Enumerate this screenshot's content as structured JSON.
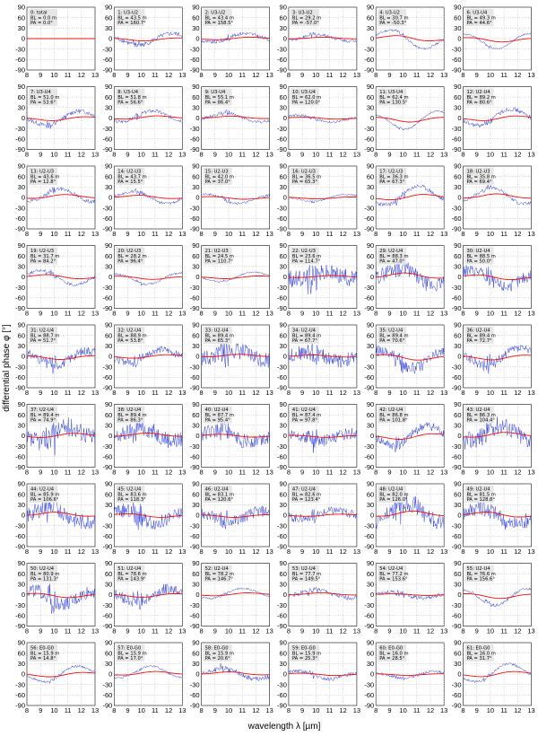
{
  "chart_data": {
    "type": "line",
    "xlabel": "wavelength λ [µm]",
    "ylabel": "differential phase φ [°]",
    "xlim": [
      8,
      13
    ],
    "ylim": [
      -90,
      90
    ],
    "x_ticks": [
      8,
      9,
      10,
      11,
      12,
      13
    ],
    "y_ticks": [
      90,
      60,
      30,
      0,
      -30,
      -60,
      -90
    ],
    "grid": "dotted",
    "series_colors": {
      "data": "#3344dd",
      "model": "#ee1111"
    },
    "panels": [
      {
        "label": "0: total",
        "bl": "BL = 0.0 m",
        "pa": "PA = 0.0°"
      },
      {
        "label": "1: U3-U2",
        "bl": "BL = 43.5 m",
        "pa": "PA = 160.7°"
      },
      {
        "label": "2: U3-U2",
        "bl": "BL = 43.4 m",
        "pa": "PA = 158.5°"
      },
      {
        "label": "3: U3-U2",
        "bl": "BL = 29.2 m",
        "pa": "PA = -57.0°"
      },
      {
        "label": "4: U3-U2",
        "bl": "BL = 30.7 m",
        "pa": "PA = -50.3°"
      },
      {
        "label": "6: U3-U4",
        "bl": "BL = 49.3 m",
        "pa": "PA = 44.6°"
      },
      {
        "label": "7: U3-U4",
        "bl": "BL = 51.0 m",
        "pa": "PA = 53.6°"
      },
      {
        "label": "8: U3-U4",
        "bl": "BL = 51.8 m",
        "pa": "PA = 56.6°"
      },
      {
        "label": "9: U3-U4",
        "bl": "BL = 55.1 m",
        "pa": "PA = 86.4°"
      },
      {
        "label": "10: U3-U4",
        "bl": "BL = 62.0 m",
        "pa": "PA = 120.0°"
      },
      {
        "label": "11: U3-U4",
        "bl": "BL = 62.4 m",
        "pa": "PA = 130.5°"
      },
      {
        "label": "12: U2-U4",
        "bl": "BL = 89.2 m",
        "pa": "PA = 80.6°"
      },
      {
        "label": "13: U2-U3",
        "bl": "BL = 43.6 m",
        "pa": "PA = 12.8°"
      },
      {
        "label": "14: U2-U3",
        "bl": "BL = 43.7 m",
        "pa": "PA = 15.5°"
      },
      {
        "label": "15: U2-U3",
        "bl": "BL = 42.0 m",
        "pa": "PA = 37.0°"
      },
      {
        "label": "16: U2-U3",
        "bl": "BL = 36.5 m",
        "pa": "PA = 65.3°"
      },
      {
        "label": "17: U2-U3",
        "bl": "BL = 36.3 m",
        "pa": "PA = 67.3°"
      },
      {
        "label": "18: U2-U3",
        "bl": "BL = 35.8 m",
        "pa": "PA = 69.4°"
      },
      {
        "label": "19: U2-U3",
        "bl": "BL = 31.7 m",
        "pa": "PA = 84.2°"
      },
      {
        "label": "20: U2-U3",
        "bl": "BL = 28.2 m",
        "pa": "PA = 96.4°"
      },
      {
        "label": "21: U2-U3",
        "bl": "BL = 24.5 m",
        "pa": "PA = 110.7°"
      },
      {
        "label": "22: U2-U3",
        "bl": "BL = 23.6 m",
        "pa": "PA = 114.7°"
      },
      {
        "label": "29: U2-U4",
        "bl": "BL = 88.3 m",
        "pa": "PA = 47.0°"
      },
      {
        "label": "30: U2-U4",
        "bl": "BL = 88.5 m",
        "pa": "PA = 50.0°"
      },
      {
        "label": "31: U2-U4",
        "bl": "BL = 88.7 m",
        "pa": "PA = 51.7°"
      },
      {
        "label": "32: U2-U4",
        "bl": "BL = 88.9 m",
        "pa": "PA = 53.8°"
      },
      {
        "label": "33: U2-U4",
        "bl": "BL = 89.4 m",
        "pa": "PA = 65.3°"
      },
      {
        "label": "34: U2-U4",
        "bl": "BL = 89.4 m",
        "pa": "PA = 67.7°"
      },
      {
        "label": "35: U2-U4",
        "bl": "BL = 89.4 m",
        "pa": "PA = 70.6°"
      },
      {
        "label": "36: U2-U4",
        "bl": "BL = 89.4 m",
        "pa": "PA = 72.7°"
      },
      {
        "label": "37: U2-U4",
        "bl": "BL = 89.4 m",
        "pa": "PA = 74.9°"
      },
      {
        "label": "38: U2-U4",
        "bl": "BL = 89.4 m",
        "pa": "PA = 86.3°"
      },
      {
        "label": "40: U2-U4",
        "bl": "BL = 87.7 m",
        "pa": "PA = 95.4°"
      },
      {
        "label": "41: U2-U4",
        "bl": "BL = 87.4 m",
        "pa": "PA = 97.8°"
      },
      {
        "label": "42: U2-U4",
        "bl": "BL = 86.8 m",
        "pa": "PA = 101.8°"
      },
      {
        "label": "43: U2-U4",
        "bl": "BL = 86.3 m",
        "pa": "PA = 104.4°"
      },
      {
        "label": "44: U2-U4",
        "bl": "BL = 85.9 m",
        "pa": "PA = 106.6°"
      },
      {
        "label": "45: U2-U4",
        "bl": "BL = 83.6 m",
        "pa": "PA = 118.3°"
      },
      {
        "label": "46: U2-U4",
        "bl": "BL = 83.1 m",
        "pa": "PA = 120.6°"
      },
      {
        "label": "47: U2-U4",
        "bl": "BL = 82.6 m",
        "pa": "PA = 123.4°"
      },
      {
        "label": "48: U2-U4",
        "bl": "BL = 82.0 m",
        "pa": "PA = 126.0°"
      },
      {
        "label": "49: U2-U4",
        "bl": "BL = 81.5 m",
        "pa": "PA = 128.8°"
      },
      {
        "label": "50: U2-U4",
        "bl": "BL = 80.9 m",
        "pa": "PA = 131.3°"
      },
      {
        "label": "51: U2-U4",
        "bl": "BL = 78.6 m",
        "pa": "PA = 143.9°"
      },
      {
        "label": "52: U2-U4",
        "bl": "BL = 78.2 m",
        "pa": "PA = 146.7°"
      },
      {
        "label": "53: U2-U4",
        "bl": "BL = 77.7 m",
        "pa": "PA = 149.5°"
      },
      {
        "label": "54: U2-U4",
        "bl": "BL = 77.2 m",
        "pa": "PA = 153.6°"
      },
      {
        "label": "55: U2-U4",
        "bl": "BL = 76.6 m",
        "pa": "PA = 156.6°"
      },
      {
        "label": "56: E0-G0",
        "bl": "BL = 15.9 m",
        "pa": "PA = 14.8°"
      },
      {
        "label": "57: E0-G0",
        "bl": "BL = 15.9 m",
        "pa": "PA = 17.0°"
      },
      {
        "label": "58: E0-G0",
        "bl": "BL = 15.9 m",
        "pa": "PA = 20.6°"
      },
      {
        "label": "59: E0-G0",
        "bl": "BL = 15.9 m",
        "pa": "PA = 25.3°"
      },
      {
        "label": "60: E0-G0",
        "bl": "BL = 16.0 m",
        "pa": "PA = 28.5°"
      },
      {
        "label": "61: E0-G0",
        "bl": "BL = 16.0 m",
        "pa": "PA = 31.7°"
      }
    ]
  }
}
